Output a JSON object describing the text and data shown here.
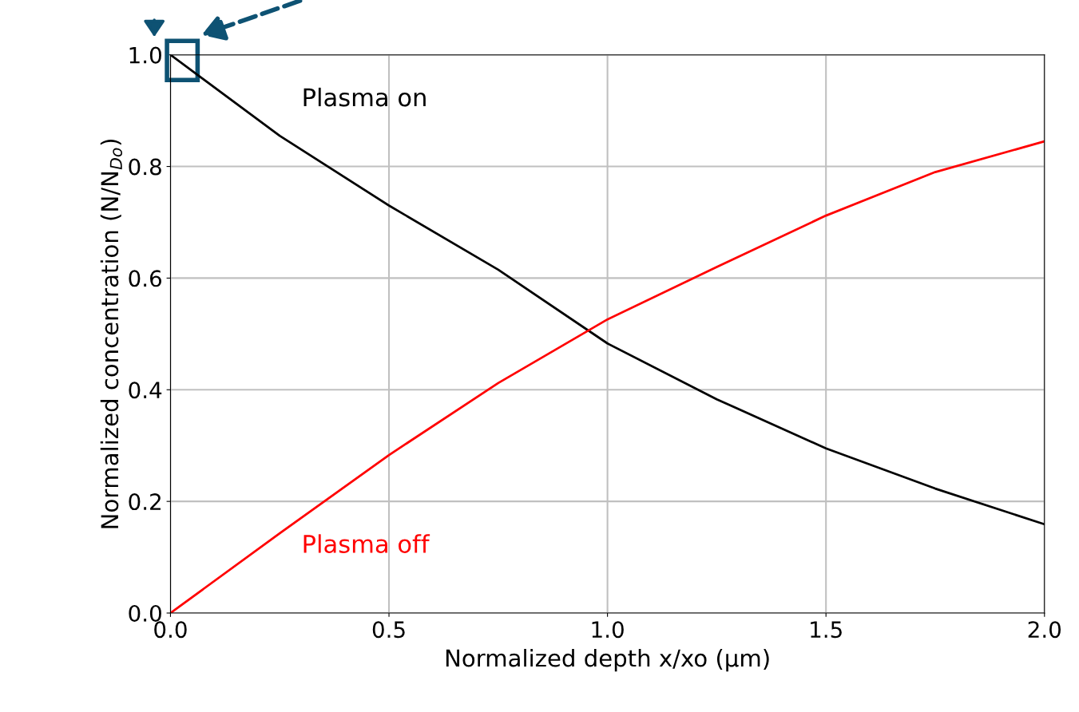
{
  "chart_data": {
    "type": "line",
    "xlabel": "Normalized depth x/xo (µm)",
    "ylabel": "Normalized concentration (N/N$_{Do}$)",
    "x": [
      0,
      0.25,
      0.5,
      0.75,
      1.0,
      1.25,
      1.5,
      1.75,
      2.0
    ],
    "series": [
      {
        "name": "Plasma on",
        "color": "#000000",
        "values": [
          1.0,
          0.855,
          0.73,
          0.615,
          0.483,
          0.383,
          0.295,
          0.223,
          0.159
        ]
      },
      {
        "name": "Plasma off",
        "color": "#ff0000",
        "values": [
          0.0,
          0.143,
          0.283,
          0.412,
          0.526,
          0.62,
          0.712,
          0.79,
          0.845
        ]
      }
    ],
    "xlim": [
      0,
      2.0
    ],
    "ylim": [
      0,
      1.0
    ],
    "xticks": [
      {
        "value": 0,
        "label": "0.0"
      },
      0.5,
      {
        "value": 1,
        "label": "1.0"
      },
      1.5,
      {
        "value": 2,
        "label": "2.0"
      }
    ],
    "yticks": [
      {
        "value": 0,
        "label": "0.0"
      },
      0.2,
      0.4,
      0.6,
      0.8,
      {
        "value": 1,
        "label": "1.0"
      }
    ],
    "grid": true,
    "legend": false,
    "marker": "none",
    "line_style": "solid"
  }
}
